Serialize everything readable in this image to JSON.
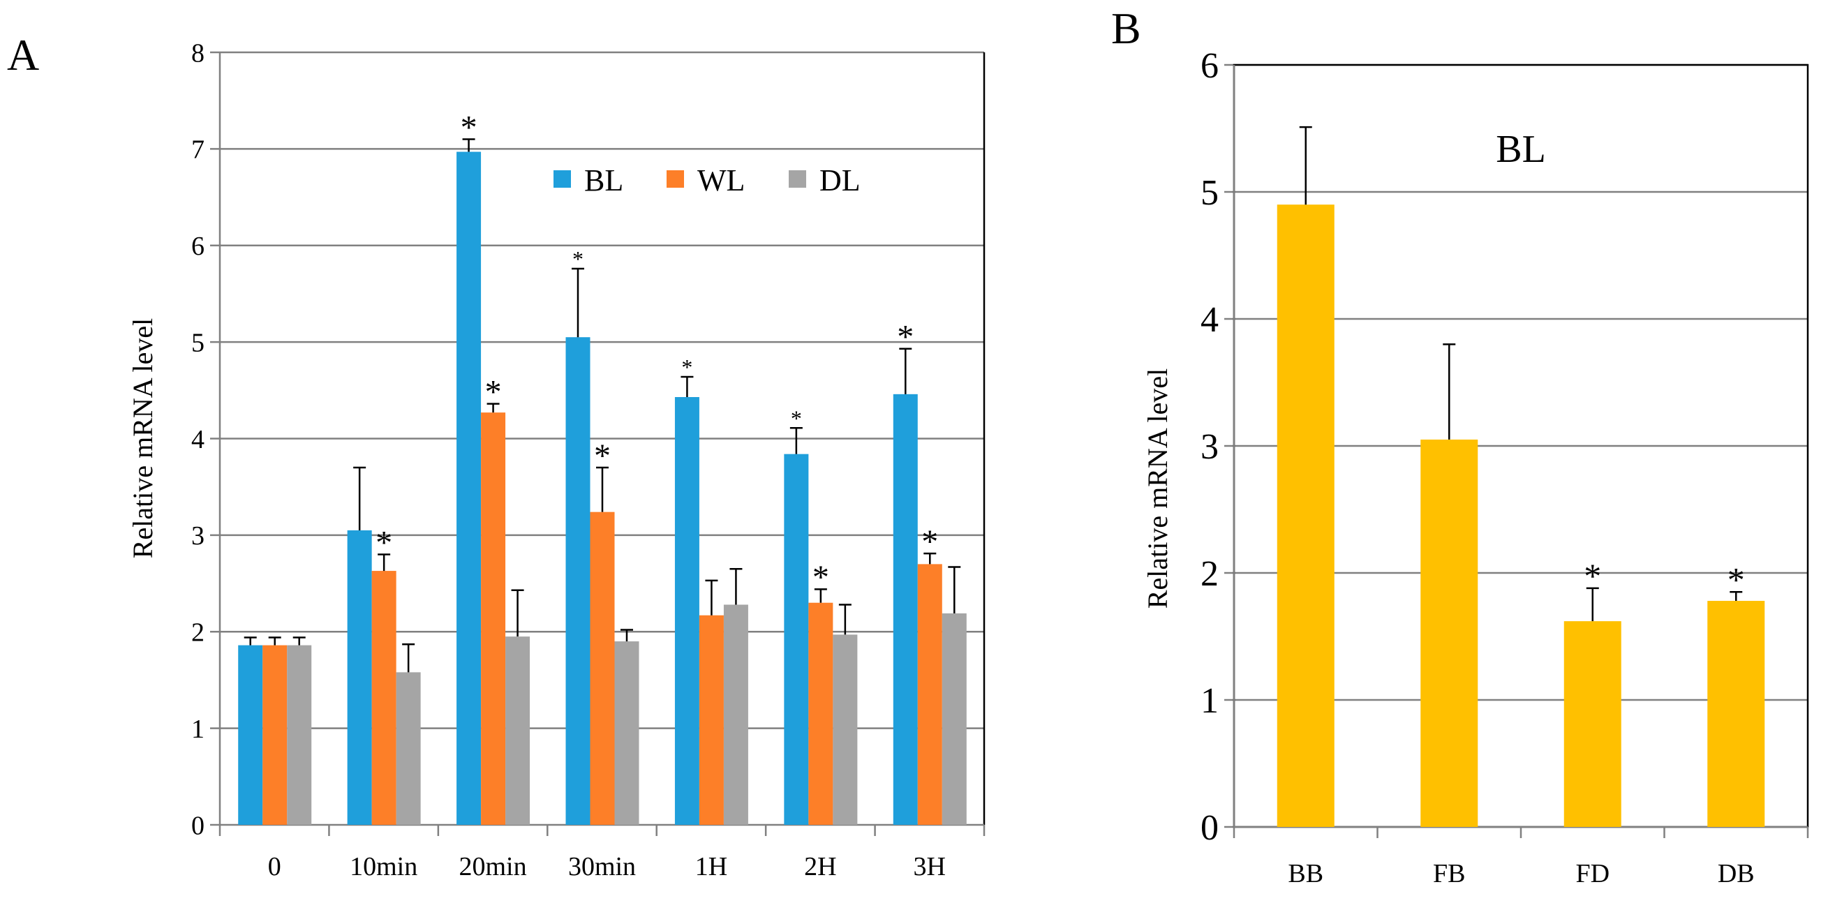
{
  "panels": [
    {
      "label": "A",
      "chart_data": {
        "type": "bar",
        "title": "",
        "xlabel": "",
        "ylabel": "Relative mRNA level",
        "ylim": [
          0,
          8
        ],
        "yticks": [
          "0",
          "1",
          "2",
          "3",
          "4",
          "5",
          "6",
          "7",
          "8"
        ],
        "grid": true,
        "legend_position": "top-center",
        "categories": [
          "0",
          "10min",
          "20min",
          "30min",
          "1H",
          "2H",
          "3H"
        ],
        "series": [
          {
            "name": "BL",
            "color": "#1F9FDB",
            "values": [
              1.86,
              3.05,
              6.97,
              5.05,
              4.43,
              3.84,
              4.46
            ],
            "errors": [
              0.08,
              0.65,
              0.13,
              0.71,
              0.21,
              0.27,
              0.47
            ],
            "stars": [
              "",
              "",
              "*",
              "*",
              "*",
              "*",
              "*"
            ]
          },
          {
            "name": "WL",
            "color": "#FD7F28",
            "values": [
              1.86,
              2.63,
              4.27,
              3.24,
              2.17,
              2.3,
              2.7
            ],
            "errors": [
              0.08,
              0.17,
              0.09,
              0.46,
              0.36,
              0.14,
              0.11
            ],
            "stars": [
              "",
              "*",
              "*",
              "*",
              "",
              "*",
              "*"
            ]
          },
          {
            "name": "DL",
            "color": "#A5A5A5",
            "values": [
              1.86,
              1.58,
              1.95,
              1.9,
              2.28,
              1.97,
              2.19
            ],
            "errors": [
              0.08,
              0.29,
              0.48,
              0.12,
              0.37,
              0.31,
              0.48
            ],
            "stars": [
              "",
              "",
              "",
              "",
              "",
              "",
              ""
            ]
          }
        ]
      }
    },
    {
      "label": "B",
      "chart_data": {
        "type": "bar",
        "title": "BL",
        "xlabel": "",
        "ylabel": "Relative mRNA level",
        "ylim": [
          0,
          6
        ],
        "yticks": [
          "0",
          "1",
          "2",
          "3",
          "4",
          "5",
          "6"
        ],
        "grid": true,
        "categories": [
          "BB",
          "FB",
          "FD",
          "DB"
        ],
        "series": [
          {
            "name": "BL",
            "color": "#FFC000",
            "values": [
              4.9,
              3.05,
              1.62,
              1.78
            ],
            "errors": [
              0.61,
              0.75,
              0.26,
              0.07
            ],
            "stars": [
              "",
              "",
              "*",
              "*"
            ]
          }
        ]
      }
    }
  ]
}
